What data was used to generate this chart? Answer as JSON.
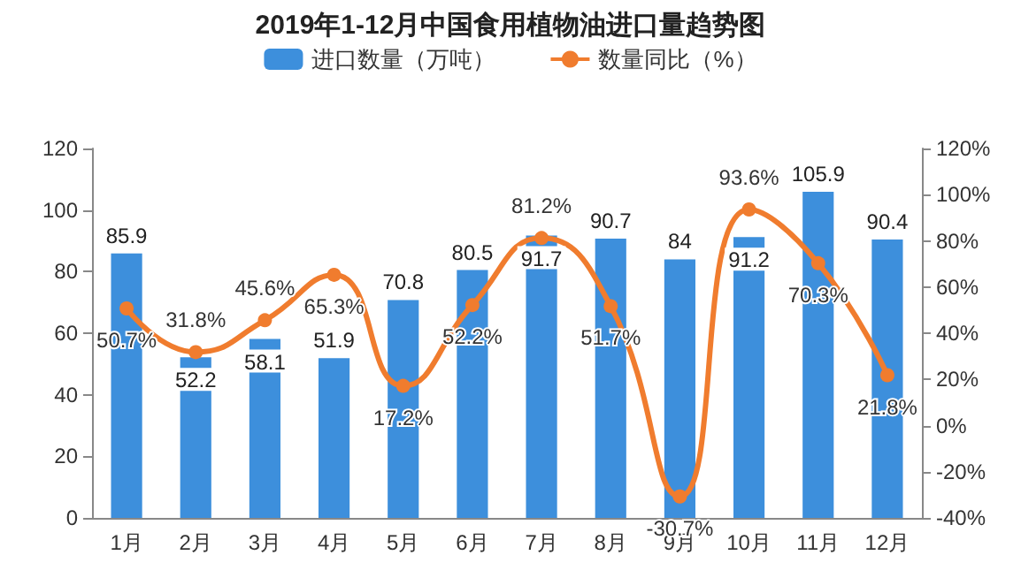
{
  "chart_data": {
    "type": "bar",
    "title": "2019年1-12月中国食用植物油进口量趋势图",
    "categories": [
      "1月",
      "2月",
      "3月",
      "4月",
      "5月",
      "6月",
      "7月",
      "8月",
      "9月",
      "10月",
      "11月",
      "12月"
    ],
    "series": [
      {
        "name": "进口数量（万吨）",
        "color": "#3d8fdc",
        "values": [
          85.9,
          52.2,
          58.1,
          51.9,
          70.8,
          80.5,
          91.7,
          90.7,
          84.0,
          91.2,
          105.9,
          90.4
        ]
      },
      {
        "name": "数量同比（%）",
        "type": "line",
        "axis": "y2",
        "color": "#f07c2e",
        "marker": "circle",
        "values": [
          50.7,
          31.8,
          45.6,
          65.3,
          17.2,
          52.2,
          81.2,
          51.7,
          -30.7,
          93.6,
          70.3,
          21.8
        ],
        "value_labels": [
          "50.7%",
          "31.8%",
          "45.6%",
          "65.3%",
          "17.2%",
          "52.2%",
          "81.2%",
          "51.7%",
          "-30.7%",
          "93.6%",
          "70.3%",
          "21.8%"
        ]
      }
    ],
    "ylim": [
      0,
      120
    ],
    "yticks": [
      0,
      20,
      40,
      60,
      80,
      100,
      120
    ],
    "y2lim": [
      -40,
      120
    ],
    "y2ticks": [
      {
        "value": -40,
        "label": "-40%"
      },
      {
        "value": -20,
        "label": "-20%"
      },
      {
        "value": 0,
        "label": "0%"
      },
      {
        "value": 20,
        "label": "20%"
      },
      {
        "value": 40,
        "label": "40%"
      },
      {
        "value": 60,
        "label": "60%"
      },
      {
        "value": 80,
        "label": "80%"
      },
      {
        "value": 100,
        "label": "100%"
      },
      {
        "value": 120,
        "label": "120%"
      }
    ],
    "data_labels": true,
    "legend": "top",
    "grid": false
  }
}
